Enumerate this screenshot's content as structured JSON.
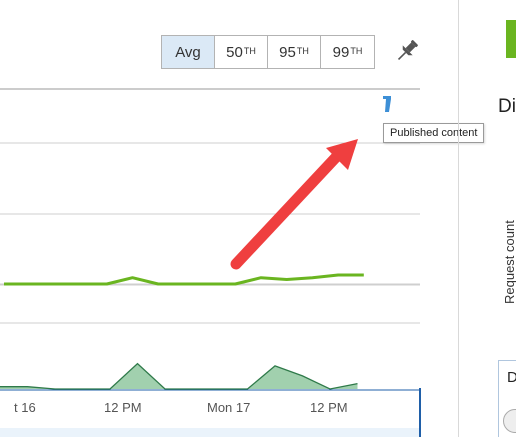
{
  "toolbar": {
    "aggregations": [
      {
        "base": "Avg",
        "sup": "",
        "active": true
      },
      {
        "base": "50",
        "sup": "TH",
        "active": false
      },
      {
        "base": "95",
        "sup": "TH",
        "active": false
      },
      {
        "base": "99",
        "sup": "TH",
        "active": false
      }
    ],
    "pin_icon": "pin-icon"
  },
  "chart": {
    "tooltip": "Published content",
    "annotation_icon": "deployment-marker-icon",
    "x_tick_labels": [
      {
        "label": "t 16",
        "pos": 14
      },
      {
        "label": "12 PM",
        "pos": 104
      },
      {
        "label": "Mon 17",
        "pos": 207
      },
      {
        "label": "12 PM",
        "pos": 310
      }
    ]
  },
  "chart_data": {
    "type": "line",
    "title": "",
    "xlabel": "",
    "ylabel": "",
    "x": [
      "t 16",
      "",
      "",
      "",
      "12 PM",
      "",
      "",
      "",
      "Mon 17",
      "",
      "",
      "",
      "12 PM",
      "",
      ""
    ],
    "series": [
      {
        "name": "",
        "color": "#6ab520",
        "values": [
          1.0,
          1.0,
          1.0,
          1.0,
          1.0,
          1.07,
          1.0,
          1.0,
          1.0,
          1.0,
          1.07,
          1.05,
          1.07,
          1.1,
          1.1
        ]
      }
    ],
    "brush": {
      "values": [
        0.03,
        0.03,
        0.0,
        0.0,
        0.0,
        0.33,
        0.0,
        0.0,
        0.0,
        0.0,
        0.3,
        0.17,
        0.0,
        0.07
      ],
      "color": "#5a9a6a"
    }
  },
  "right_panel": {
    "title": "Di",
    "ylabel": "Request count",
    "card_text": "D",
    "accent": "#6ab520"
  }
}
